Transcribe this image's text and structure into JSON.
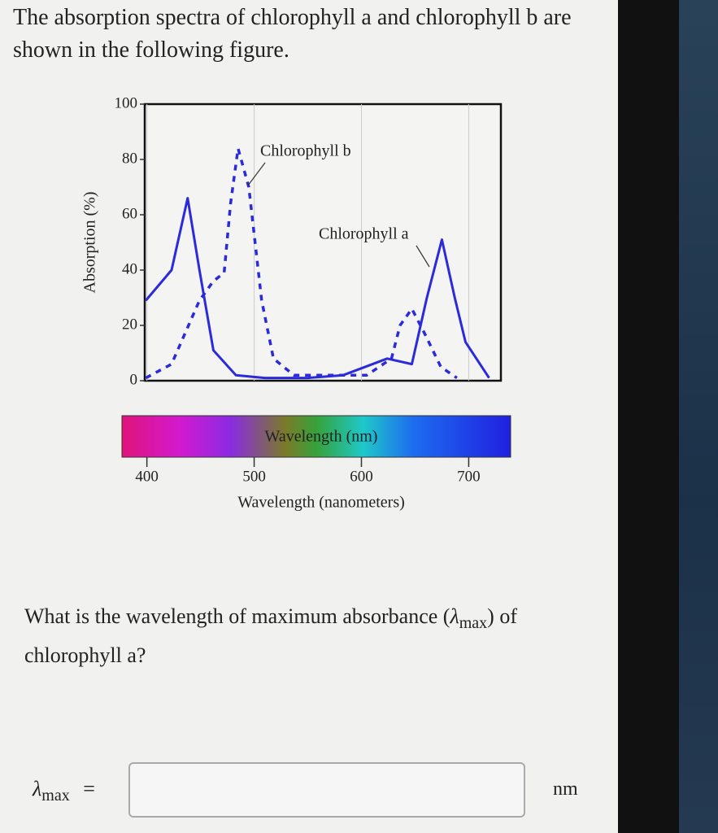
{
  "intro": "The absorption spectra of chlorophyll a and chlorophyll b are shown in the following figure.",
  "question": {
    "before": "What is the wavelength of maximum absorbance (",
    "symbol": "λ",
    "subscript": "max",
    "after": ") of chlorophyll a?"
  },
  "answer": {
    "symbol": "λ",
    "subscript": "max",
    "equals": "=",
    "unit": "nm"
  },
  "chart_data": {
    "type": "line",
    "y_label": "Absorption (%)",
    "x_label": "Wavelength (nanometers)",
    "spectrum_label": "Wavelength (nm)",
    "xlim": [
      398,
      730
    ],
    "xticks": [
      400,
      500,
      600,
      700
    ],
    "ylim": [
      0,
      100
    ],
    "yticks": [
      0,
      20,
      40,
      60,
      80,
      100
    ],
    "grid": true,
    "series": [
      {
        "name": "Chlorophyll b",
        "color": "#2b2bd9",
        "dashed": true,
        "x": [
          399,
          423,
          449,
          462,
          472,
          478,
          485,
          495,
          507,
          518,
          537,
          605,
          628,
          636,
          647,
          659,
          674,
          689
        ],
        "values": [
          1,
          6,
          29,
          36,
          39,
          64,
          84,
          70,
          29,
          8,
          2,
          2,
          8,
          20,
          26,
          17,
          5,
          1
        ]
      },
      {
        "name": "Chlorophyll a",
        "color": "#2b2bd9",
        "dashed": false,
        "x": [
          399,
          423,
          438,
          449,
          462,
          483,
          510,
          550,
          583,
          624,
          647,
          661,
          675,
          687,
          697,
          719
        ],
        "values": [
          29,
          40,
          66,
          40,
          11,
          2,
          1,
          1,
          2,
          8,
          6,
          30,
          51,
          30,
          14,
          1
        ]
      }
    ]
  }
}
